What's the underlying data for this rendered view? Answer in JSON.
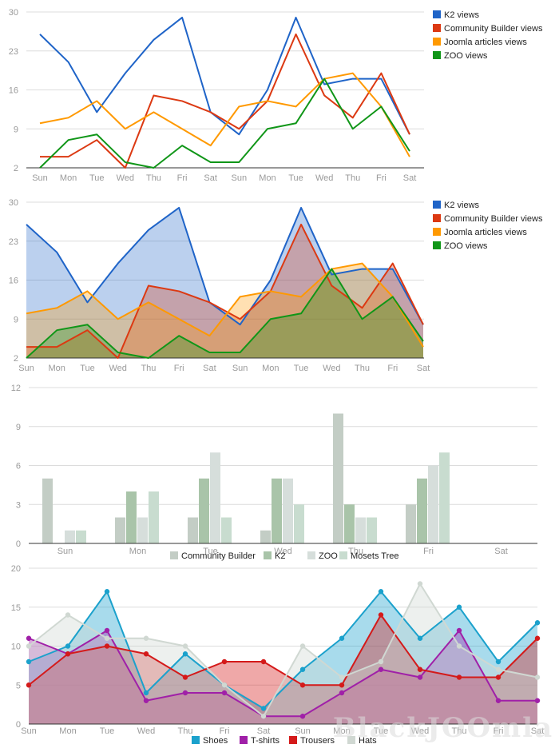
{
  "chart_data": [
    {
      "type": "line",
      "title": "",
      "xlabel": "",
      "ylabel": "",
      "categories": [
        "Sun",
        "Mon",
        "Tue",
        "Wed",
        "Thu",
        "Fri",
        "Sat",
        "Sun",
        "Mon",
        "Tue",
        "Wed",
        "Thu",
        "Fri",
        "Sat"
      ],
      "yticks": [
        2,
        9,
        16,
        23,
        30
      ],
      "ylim": [
        2,
        30
      ],
      "grid": true,
      "legend": "right",
      "series": [
        {
          "name": "K2 views",
          "color": "#1f64c8",
          "values": [
            26,
            21,
            12,
            19,
            25,
            29,
            12,
            8,
            16,
            29,
            17,
            18,
            18,
            8
          ]
        },
        {
          "name": "Community Builder views",
          "color": "#dc3912",
          "values": [
            4,
            4,
            7,
            2,
            15,
            14,
            12,
            9,
            14,
            26,
            15,
            11,
            19,
            8
          ]
        },
        {
          "name": "Joomla articles views",
          "color": "#ff9900",
          "values": [
            10,
            11,
            14,
            9,
            12,
            9,
            6,
            13,
            14,
            13,
            18,
            19,
            13,
            4
          ]
        },
        {
          "name": "ZOO views",
          "color": "#109618",
          "values": [
            2,
            7,
            8,
            3,
            2,
            6,
            3,
            3,
            9,
            10,
            18,
            9,
            13,
            5
          ]
        }
      ]
    },
    {
      "type": "area",
      "title": "",
      "xlabel": "",
      "ylabel": "",
      "categories": [
        "Sun",
        "Mon",
        "Tue",
        "Wed",
        "Thu",
        "Fri",
        "Sat",
        "Sun",
        "Mon",
        "Tue",
        "Wed",
        "Thu",
        "Fri",
        "Sat"
      ],
      "yticks": [
        2,
        9,
        16,
        23,
        30
      ],
      "ylim": [
        2,
        30
      ],
      "grid": true,
      "legend": "right",
      "series": [
        {
          "name": "K2 views",
          "color": "#1f64c8",
          "values": [
            26,
            21,
            12,
            19,
            25,
            29,
            12,
            8,
            16,
            29,
            17,
            18,
            18,
            8
          ]
        },
        {
          "name": "Community Builder views",
          "color": "#dc3912",
          "values": [
            4,
            4,
            7,
            2,
            15,
            14,
            12,
            9,
            14,
            26,
            15,
            11,
            19,
            8
          ]
        },
        {
          "name": "Joomla articles views",
          "color": "#ff9900",
          "values": [
            10,
            11,
            14,
            9,
            12,
            9,
            6,
            13,
            14,
            13,
            18,
            19,
            13,
            4
          ]
        },
        {
          "name": "ZOO views",
          "color": "#109618",
          "values": [
            2,
            7,
            8,
            3,
            2,
            6,
            3,
            3,
            9,
            10,
            18,
            9,
            13,
            5
          ]
        }
      ]
    },
    {
      "type": "bar",
      "title": "",
      "xlabel": "",
      "ylabel": "",
      "categories": [
        "Sun",
        "Mon",
        "Tue",
        "Wed",
        "Thu",
        "Fri",
        "Sat"
      ],
      "yticks": [
        0,
        3,
        6,
        9,
        12
      ],
      "ylim": [
        0,
        12
      ],
      "grid": true,
      "legend": "bottom",
      "series": [
        {
          "name": "Community Builder",
          "color": "#c3cdc5",
          "values": [
            5,
            2,
            2,
            1,
            10,
            3,
            0
          ]
        },
        {
          "name": "K2",
          "color": "#a9c4a9",
          "values": [
            0,
            4,
            5,
            5,
            3,
            5,
            0
          ]
        },
        {
          "name": "ZOO",
          "color": "#d6dedb",
          "values": [
            1,
            2,
            7,
            5,
            2,
            6,
            0
          ]
        },
        {
          "name": "Mosets Tree",
          "color": "#c8dccf",
          "values": [
            1,
            4,
            2,
            3,
            2,
            7,
            0
          ]
        }
      ]
    },
    {
      "type": "area",
      "title": "",
      "xlabel": "",
      "ylabel": "",
      "categories": [
        "Sun",
        "Mon",
        "Tue",
        "Wed",
        "Thu",
        "Fri",
        "Sat",
        "Sun",
        "Mon",
        "Tue",
        "Wed",
        "Thu",
        "Fri",
        "Sat"
      ],
      "yticks": [
        0,
        5,
        10,
        15,
        20
      ],
      "ylim": [
        0,
        20
      ],
      "grid": true,
      "legend": "bottom",
      "series": [
        {
          "name": "Shoes",
          "color": "#1ba1cc",
          "values": [
            8,
            10,
            17,
            4,
            9,
            5,
            2,
            7,
            11,
            17,
            11,
            15,
            8,
            13
          ]
        },
        {
          "name": "T-shirts",
          "color": "#a020a8",
          "values": [
            11,
            9,
            12,
            3,
            4,
            4,
            1,
            1,
            4,
            7,
            6,
            12,
            3,
            3
          ]
        },
        {
          "name": "Trousers",
          "color": "#d41a1a",
          "values": [
            5,
            9,
            10,
            9,
            6,
            8,
            8,
            5,
            5,
            14,
            7,
            6,
            6,
            11
          ]
        },
        {
          "name": "Hats",
          "color": "#d0d8d2",
          "values": [
            10,
            14,
            11,
            11,
            10,
            5,
            1,
            10,
            6,
            8,
            18,
            10,
            7,
            6
          ]
        }
      ]
    }
  ],
  "watermark": "BlackJOOmla"
}
